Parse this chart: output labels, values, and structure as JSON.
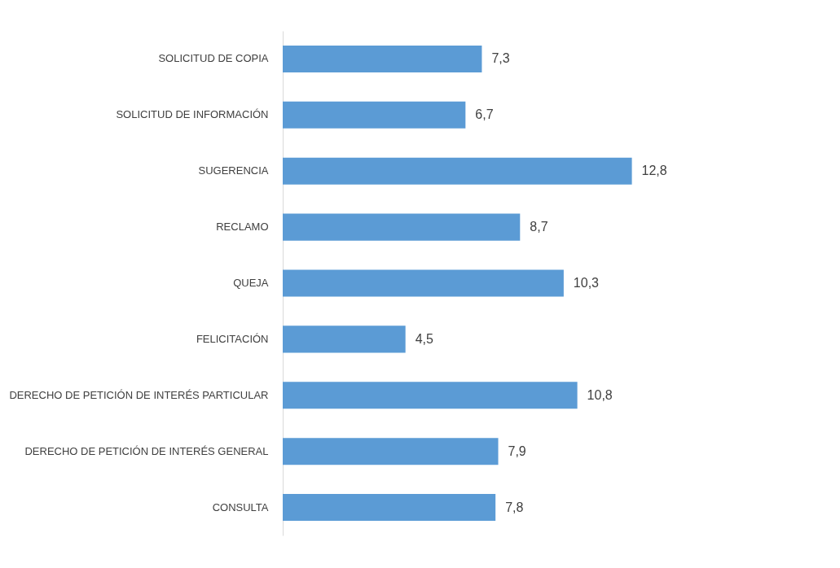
{
  "chart_data": {
    "type": "bar",
    "orientation": "horizontal",
    "categories": [
      "SOLICITUD DE COPIA",
      "SOLICITUD DE INFORMACIÓN",
      "SUGERENCIA",
      "RECLAMO",
      "QUEJA",
      "FELICITACIÓN",
      "DERECHO DE PETICIÓN DE INTERÉS PARTICULAR",
      "DERECHO DE PETICIÓN DE INTERÉS GENERAL",
      "CONSULTA"
    ],
    "values": [
      7.3,
      6.7,
      12.8,
      8.7,
      10.3,
      4.5,
      10.8,
      7.9,
      7.8
    ],
    "value_labels": [
      "7,3",
      "6,7",
      "12,8",
      "8,7",
      "10,3",
      "4,5",
      "10,8",
      "7,9",
      "7,8"
    ],
    "color": "#5b9bd5"
  }
}
